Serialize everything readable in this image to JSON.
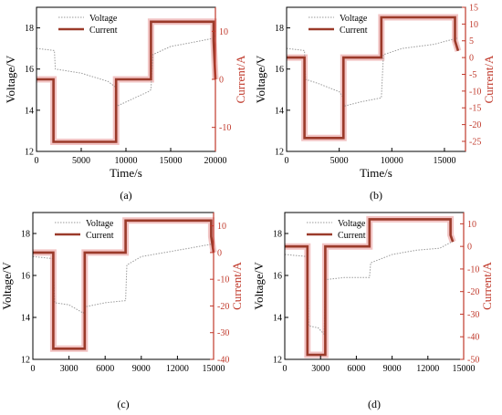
{
  "colors": {
    "voltage": "#9a9a9a",
    "current": "#9b3a2a",
    "current_axis": "#c0392b",
    "shadow": "#f2c4c4",
    "axis": "#000000"
  },
  "chart_data": [
    {
      "type": "line",
      "caption": "(a)",
      "xlabel": "Time/s",
      "ylabel": "Voltage/V",
      "y2label": "Current/A",
      "xlim": [
        0,
        20000
      ],
      "ylim": [
        12,
        19
      ],
      "y2lim": [
        -15,
        15
      ],
      "xticks": [
        "0",
        "5000",
        "10000",
        "15000",
        "20000"
      ],
      "xtick_values": [
        0,
        5000,
        10000,
        15000,
        20000
      ],
      "yticks": [
        "12",
        "14",
        "16",
        "18"
      ],
      "ytick_values": [
        12,
        14,
        16,
        18
      ],
      "y2ticks": [
        "10",
        "0",
        "-10"
      ],
      "y2tick_values": [
        10,
        0,
        -10
      ],
      "legend": [
        "Voltage",
        "Current"
      ],
      "legend_position": "top-left",
      "series": [
        {
          "name": "Voltage",
          "axis": "left",
          "style": "dotted",
          "x": [
            0,
            2000,
            2100,
            5000,
            8000,
            8900,
            9000,
            10000,
            12500,
            12800,
            13000,
            15000,
            17500,
            19800,
            20000
          ],
          "y": [
            17.0,
            16.9,
            16.0,
            15.8,
            15.4,
            15.1,
            14.2,
            14.4,
            14.9,
            15.0,
            16.7,
            17.1,
            17.3,
            17.5,
            17.7
          ]
        },
        {
          "name": "Current",
          "axis": "right",
          "style": "solid",
          "x": [
            0,
            1900,
            1900,
            8900,
            8900,
            12800,
            12800,
            19800,
            19800,
            20000
          ],
          "y": [
            0,
            0,
            -13,
            -13,
            0,
            0,
            12,
            12,
            8,
            0
          ]
        }
      ]
    },
    {
      "type": "line",
      "caption": "(b)",
      "xlabel": "Time/s",
      "ylabel": "Voltage/V",
      "y2label": "Current/A",
      "xlim": [
        0,
        17000
      ],
      "ylim": [
        12,
        19
      ],
      "y2lim": [
        -28,
        15
      ],
      "xticks": [
        "0",
        "5000",
        "10000",
        "15000"
      ],
      "xtick_values": [
        0,
        5000,
        10000,
        15000
      ],
      "yticks": [
        "12",
        "14",
        "16",
        "18"
      ],
      "ytick_values": [
        12,
        14,
        16,
        18
      ],
      "y2ticks": [
        "15",
        "10",
        "5",
        "0",
        "-5",
        "-10",
        "-15",
        "-20",
        "-25"
      ],
      "y2tick_values": [
        15,
        10,
        5,
        0,
        -5,
        -10,
        -15,
        -20,
        -25
      ],
      "legend": [
        "Voltage",
        "Current"
      ],
      "legend_position": "top-left",
      "series": [
        {
          "name": "Voltage",
          "axis": "left",
          "style": "dotted",
          "x": [
            0,
            1700,
            1800,
            3000,
            5000,
            5400,
            5500,
            7000,
            9000,
            9200,
            11000,
            14000,
            16200
          ],
          "y": [
            17.0,
            16.9,
            15.5,
            15.3,
            14.9,
            14.6,
            14.2,
            14.4,
            14.6,
            16.7,
            17.0,
            17.2,
            17.5
          ]
        },
        {
          "name": "Current",
          "axis": "right",
          "style": "solid",
          "x": [
            0,
            1700,
            1700,
            5400,
            5400,
            9000,
            9000,
            16000,
            16000,
            16300
          ],
          "y": [
            0,
            0,
            -24,
            -24,
            0,
            0,
            12,
            12,
            5,
            2
          ]
        }
      ]
    },
    {
      "type": "line",
      "caption": "(c)",
      "xlabel": "",
      "ylabel": "Voltage/V",
      "y2label": "Current/A",
      "xlim": [
        0,
        15000
      ],
      "ylim": [
        12,
        19
      ],
      "y2lim": [
        -40,
        15
      ],
      "xticks": [
        "0",
        "3000",
        "6000",
        "9000",
        "12000",
        "15000"
      ],
      "xtick_values": [
        0,
        3000,
        6000,
        9000,
        12000,
        15000
      ],
      "yticks": [
        "12",
        "14",
        "16",
        "18"
      ],
      "ytick_values": [
        12,
        14,
        16,
        18
      ],
      "y2ticks": [
        "10",
        "0",
        "-10",
        "-20",
        "-30",
        "-40"
      ],
      "y2tick_values": [
        10,
        0,
        -10,
        -20,
        -30,
        -40
      ],
      "legend": [
        "Voltage",
        "Current"
      ],
      "legend_position": "top-left",
      "series": [
        {
          "name": "Voltage",
          "axis": "left",
          "style": "dotted",
          "x": [
            0,
            1700,
            1800,
            3000,
            4200,
            4300,
            6000,
            7700,
            7800,
            9000,
            11000,
            13000,
            14900
          ],
          "y": [
            16.9,
            16.8,
            14.7,
            14.6,
            14.2,
            14.5,
            14.7,
            14.8,
            16.5,
            16.9,
            17.1,
            17.3,
            17.5
          ]
        },
        {
          "name": "Current",
          "axis": "right",
          "style": "solid",
          "x": [
            0,
            1700,
            1700,
            4300,
            4300,
            7700,
            7700,
            14800,
            14800,
            15000
          ],
          "y": [
            0,
            0,
            -36,
            -36,
            0,
            0,
            12,
            12,
            6,
            0
          ]
        }
      ]
    },
    {
      "type": "line",
      "caption": "(d)",
      "xlabel": "",
      "ylabel": "Voltage/V",
      "y2label": "Current/A",
      "xlim": [
        0,
        15000
      ],
      "ylim": [
        12,
        19
      ],
      "y2lim": [
        -50,
        15
      ],
      "xticks": [
        "0",
        "3000",
        "6000",
        "9000",
        "12000",
        "15000"
      ],
      "xtick_values": [
        0,
        3000,
        6000,
        9000,
        12000,
        15000
      ],
      "yticks": [
        "12",
        "14",
        "16",
        "18"
      ],
      "ytick_values": [
        12,
        14,
        16,
        18
      ],
      "y2ticks": [
        "10",
        "0",
        "-10",
        "-20",
        "-30",
        "-40",
        "-50"
      ],
      "y2tick_values": [
        10,
        0,
        -10,
        -20,
        -30,
        -40,
        -50
      ],
      "legend": [
        "Voltage",
        "Current"
      ],
      "legend_position": "top-left",
      "series": [
        {
          "name": "Voltage",
          "axis": "left",
          "style": "dotted",
          "x": [
            0,
            1900,
            2000,
            2800,
            3300,
            3400,
            5000,
            7100,
            7200,
            9000,
            11000,
            13000,
            14000
          ],
          "y": [
            17.0,
            16.9,
            13.6,
            13.5,
            13.2,
            15.8,
            15.9,
            15.9,
            16.6,
            17.0,
            17.2,
            17.3,
            17.6
          ]
        },
        {
          "name": "Current",
          "axis": "right",
          "style": "solid",
          "x": [
            0,
            1900,
            1900,
            3400,
            3400,
            7100,
            7100,
            13900,
            13900,
            14100
          ],
          "y": [
            0,
            0,
            -48,
            -48,
            0,
            0,
            12,
            12,
            5,
            2
          ]
        }
      ]
    }
  ]
}
